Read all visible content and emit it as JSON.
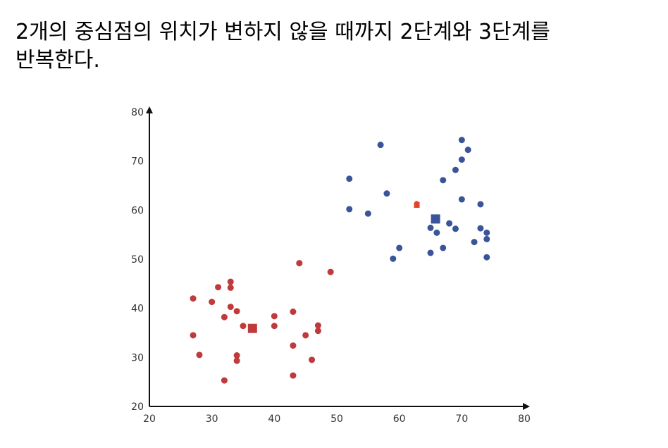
{
  "caption": {
    "line1": "2개의 중심점의 위치가 변하지 않을 때까지 2단계와 3단계를",
    "line2": "반복한다."
  },
  "chart_data": {
    "type": "scatter",
    "title": "",
    "xlabel": "",
    "ylabel": "",
    "xlim": [
      20,
      80
    ],
    "ylim": [
      20,
      80
    ],
    "x_ticks": [
      "20",
      "30",
      "40",
      "50",
      "60",
      "70",
      "80"
    ],
    "y_ticks": [
      "20",
      "30",
      "40",
      "50",
      "60",
      "70",
      "80"
    ],
    "grid": false,
    "colors": {
      "red": "#c0393b",
      "blue": "#3a5597",
      "previous_center": "#e0442a"
    },
    "series": [
      {
        "color": "red",
        "points": [
          [
            27,
            42
          ],
          [
            27,
            34.5
          ],
          [
            28,
            30.5
          ],
          [
            30,
            41.3
          ],
          [
            31,
            44.3
          ],
          [
            32,
            38.2
          ],
          [
            32,
            25.3
          ],
          [
            33,
            45.4
          ],
          [
            33,
            44.2
          ],
          [
            33,
            40.3
          ],
          [
            34,
            39.4
          ],
          [
            34,
            30.4
          ],
          [
            34,
            29.3
          ],
          [
            35,
            36.4
          ],
          [
            40,
            38.4
          ],
          [
            40,
            36.4
          ],
          [
            43,
            39.3
          ],
          [
            43,
            32.4
          ],
          [
            43,
            26.3
          ],
          [
            44,
            49.2
          ],
          [
            45,
            34.5
          ],
          [
            46,
            29.5
          ],
          [
            47,
            36.5
          ],
          [
            47,
            35.4
          ],
          [
            49,
            47.4
          ]
        ],
        "center": [
          36.5,
          35.9
        ]
      },
      {
        "color": "blue",
        "points": [
          [
            52,
            66.4
          ],
          [
            52,
            60.2
          ],
          [
            55,
            59.3
          ],
          [
            57,
            73.3
          ],
          [
            58,
            63.4
          ],
          [
            59,
            50.1
          ],
          [
            60,
            52.3
          ],
          [
            65,
            56.4
          ],
          [
            65,
            51.3
          ],
          [
            66,
            55.4
          ],
          [
            67,
            52.3
          ],
          [
            67,
            66.1
          ],
          [
            68,
            57.3
          ],
          [
            69,
            68.2
          ],
          [
            69,
            56.2
          ],
          [
            70,
            74.3
          ],
          [
            70,
            70.3
          ],
          [
            70,
            62.2
          ],
          [
            71,
            72.3
          ],
          [
            72,
            53.5
          ],
          [
            73,
            61.2
          ],
          [
            73,
            56.3
          ],
          [
            74,
            55.4
          ],
          [
            74,
            54.1
          ],
          [
            74,
            50.4
          ]
        ],
        "center": [
          65.8,
          58.2
        ]
      }
    ],
    "previous_center": [
      62.8,
      61.2
    ]
  }
}
